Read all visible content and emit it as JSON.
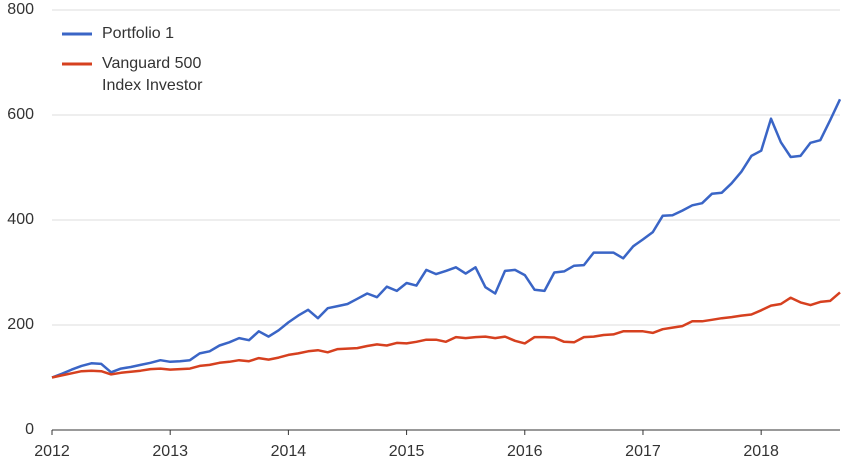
{
  "chart_data": {
    "type": "line",
    "x": [
      2012,
      2012.083,
      2012.167,
      2012.25,
      2012.333,
      2012.417,
      2012.5,
      2012.583,
      2012.667,
      2012.75,
      2012.833,
      2012.917,
      2013,
      2013.083,
      2013.167,
      2013.25,
      2013.333,
      2013.417,
      2013.5,
      2013.583,
      2013.667,
      2013.75,
      2013.833,
      2013.917,
      2014,
      2014.083,
      2014.167,
      2014.25,
      2014.333,
      2014.417,
      2014.5,
      2014.583,
      2014.667,
      2014.75,
      2014.833,
      2014.917,
      2015,
      2015.083,
      2015.167,
      2015.25,
      2015.333,
      2015.417,
      2015.5,
      2015.583,
      2015.667,
      2015.75,
      2015.833,
      2015.917,
      2016,
      2016.083,
      2016.167,
      2016.25,
      2016.333,
      2016.417,
      2016.5,
      2016.583,
      2016.667,
      2016.75,
      2016.833,
      2016.917,
      2017,
      2017.083,
      2017.167,
      2017.25,
      2017.333,
      2017.417,
      2017.5,
      2017.583,
      2017.667,
      2017.75,
      2017.833,
      2017.917,
      2018,
      2018.083,
      2018.167,
      2018.25,
      2018.333,
      2018.417,
      2018.5,
      2018.583,
      2018.667
    ],
    "series": [
      {
        "name": "Portfolio 1",
        "color": "#3a65c6",
        "values": [
          100,
          107,
          115,
          122,
          127,
          126,
          110,
          117,
          120,
          124,
          128,
          133,
          130,
          131,
          133,
          146,
          150,
          161,
          167,
          175,
          171,
          188,
          178,
          190,
          205,
          218,
          229,
          213,
          232,
          236,
          240,
          250,
          260,
          253,
          273,
          265,
          280,
          275,
          305,
          297,
          303,
          310,
          298,
          310,
          272,
          260,
          303,
          305,
          295,
          267,
          265,
          300,
          302,
          313,
          314,
          338,
          338,
          338,
          327,
          350,
          363,
          377,
          408,
          409,
          418,
          428,
          432,
          450,
          452,
          470,
          492,
          522,
          532,
          593,
          548,
          520,
          522,
          547,
          552,
          590,
          630
        ]
      },
      {
        "name": "Vanguard 500 Index Investor",
        "color": "#d6401f",
        "values": [
          100,
          104,
          108,
          112,
          113,
          112,
          106,
          109,
          111,
          113,
          116,
          117,
          115,
          116,
          117,
          122,
          124,
          128,
          130,
          133,
          131,
          137,
          134,
          138,
          143,
          146,
          150,
          152,
          148,
          154,
          155,
          156,
          160,
          163,
          161,
          166,
          165,
          168,
          172,
          172,
          168,
          177,
          175,
          177,
          178,
          175,
          178,
          170,
          165,
          177,
          177,
          176,
          168,
          167,
          177,
          178,
          181,
          182,
          188,
          188,
          188,
          185,
          192,
          195,
          198,
          207,
          207,
          210,
          213,
          215,
          218,
          220,
          228,
          237,
          240,
          252,
          243,
          238,
          244,
          246,
          262
        ]
      }
    ],
    "xlim": [
      2012,
      2018.667
    ],
    "xticks": [
      2012,
      2013,
      2014,
      2015,
      2016,
      2017,
      2018
    ],
    "ylim": [
      0,
      800
    ],
    "yticks": [
      0,
      200,
      400,
      600,
      800
    ],
    "grid": true,
    "legend": "top-left"
  }
}
